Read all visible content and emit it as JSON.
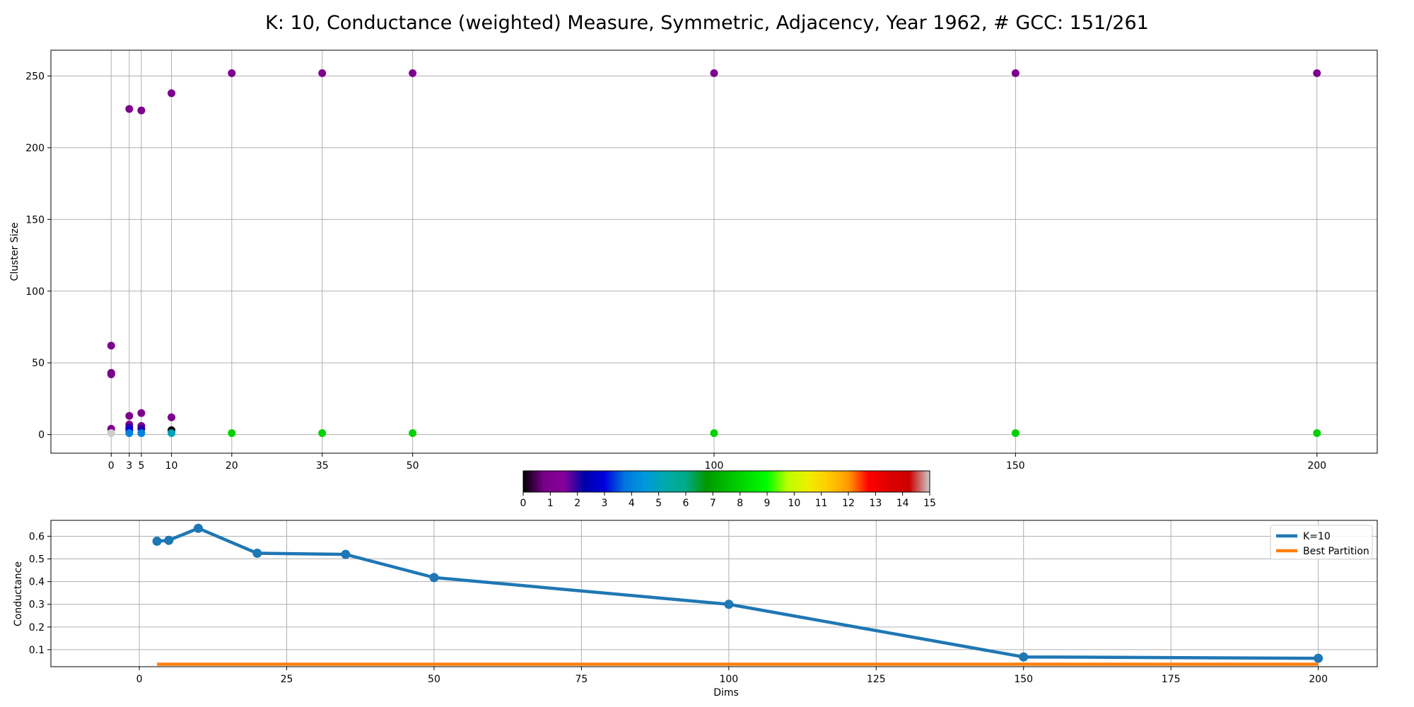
{
  "title": "K: 10, Conductance (weighted) Measure, Symmetric, Adjacency, Year 1962, # GCC: 151/261",
  "chart_data": [
    {
      "type": "scatter",
      "ylabel": "Cluster Size",
      "xlabel": "",
      "x_ticks": [
        0,
        3,
        5,
        10,
        20,
        35,
        50,
        100,
        150,
        200
      ],
      "y_ticks": [
        0,
        50,
        100,
        150,
        200,
        250
      ],
      "xlim": [
        -10,
        210
      ],
      "ylim": [
        -13,
        268
      ],
      "grid": true,
      "color_scale": "nipy_spectral",
      "points": [
        {
          "x": 0,
          "y": 62,
          "c": 1
        },
        {
          "x": 0,
          "y": 43,
          "c": 1
        },
        {
          "x": 0,
          "y": 42,
          "c": 1
        },
        {
          "x": 0,
          "y": 4,
          "c": 1
        },
        {
          "x": 0,
          "y": 1,
          "c": 15
        },
        {
          "x": 3,
          "y": 227,
          "c": 1
        },
        {
          "x": 3,
          "y": 13,
          "c": 1
        },
        {
          "x": 3,
          "y": 7,
          "c": 1
        },
        {
          "x": 3,
          "y": 5,
          "c": 2
        },
        {
          "x": 3,
          "y": 3,
          "c": 3
        },
        {
          "x": 3,
          "y": 1,
          "c": 4
        },
        {
          "x": 5,
          "y": 226,
          "c": 1
        },
        {
          "x": 5,
          "y": 15,
          "c": 1
        },
        {
          "x": 5,
          "y": 6,
          "c": 1
        },
        {
          "x": 5,
          "y": 4,
          "c": 2
        },
        {
          "x": 5,
          "y": 1,
          "c": 4
        },
        {
          "x": 10,
          "y": 238,
          "c": 1
        },
        {
          "x": 10,
          "y": 12,
          "c": 1
        },
        {
          "x": 10,
          "y": 3,
          "c": 0
        },
        {
          "x": 10,
          "y": 1,
          "c": 5
        },
        {
          "x": 20,
          "y": 252,
          "c": 1
        },
        {
          "x": 20,
          "y": 1,
          "c": 8
        },
        {
          "x": 35,
          "y": 252,
          "c": 1
        },
        {
          "x": 35,
          "y": 1,
          "c": 8
        },
        {
          "x": 50,
          "y": 252,
          "c": 1
        },
        {
          "x": 50,
          "y": 1,
          "c": 8
        },
        {
          "x": 100,
          "y": 252,
          "c": 1
        },
        {
          "x": 100,
          "y": 1,
          "c": 8
        },
        {
          "x": 150,
          "y": 252,
          "c": 1
        },
        {
          "x": 150,
          "y": 1,
          "c": 8
        },
        {
          "x": 200,
          "y": 252,
          "c": 1
        },
        {
          "x": 200,
          "y": 1,
          "c": 8
        }
      ]
    },
    {
      "type": "colorbar",
      "min": 0,
      "max": 15,
      "ticks": [
        "0",
        "1",
        "2",
        "3",
        "4",
        "5",
        "6",
        "7",
        "8",
        "9",
        "10",
        "11",
        "12",
        "13",
        "14",
        "15"
      ],
      "colormap": "nipy_spectral"
    },
    {
      "type": "line",
      "xlabel": "Dims",
      "ylabel": "Conductance",
      "xlim": [
        -15,
        210
      ],
      "ylim": [
        0.025,
        0.67
      ],
      "x_ticks": [
        0,
        25,
        50,
        75,
        100,
        125,
        150,
        175,
        200
      ],
      "y_ticks": [
        "0.1",
        "0.2",
        "0.3",
        "0.4",
        "0.5",
        "0.6"
      ],
      "grid": true,
      "legend_position": "top-right",
      "series": [
        {
          "name": "K=10",
          "color": "#1f77b4",
          "x": [
            3,
            5,
            10,
            20,
            35,
            50,
            100,
            150,
            200
          ],
          "y": [
            0.578,
            0.582,
            0.635,
            0.525,
            0.52,
            0.418,
            0.3,
            0.068,
            0.062
          ]
        },
        {
          "name": "Best Partition",
          "color": "#ff7f0e",
          "x": [
            3,
            200
          ],
          "y": [
            0.036,
            0.036
          ]
        }
      ]
    }
  ]
}
